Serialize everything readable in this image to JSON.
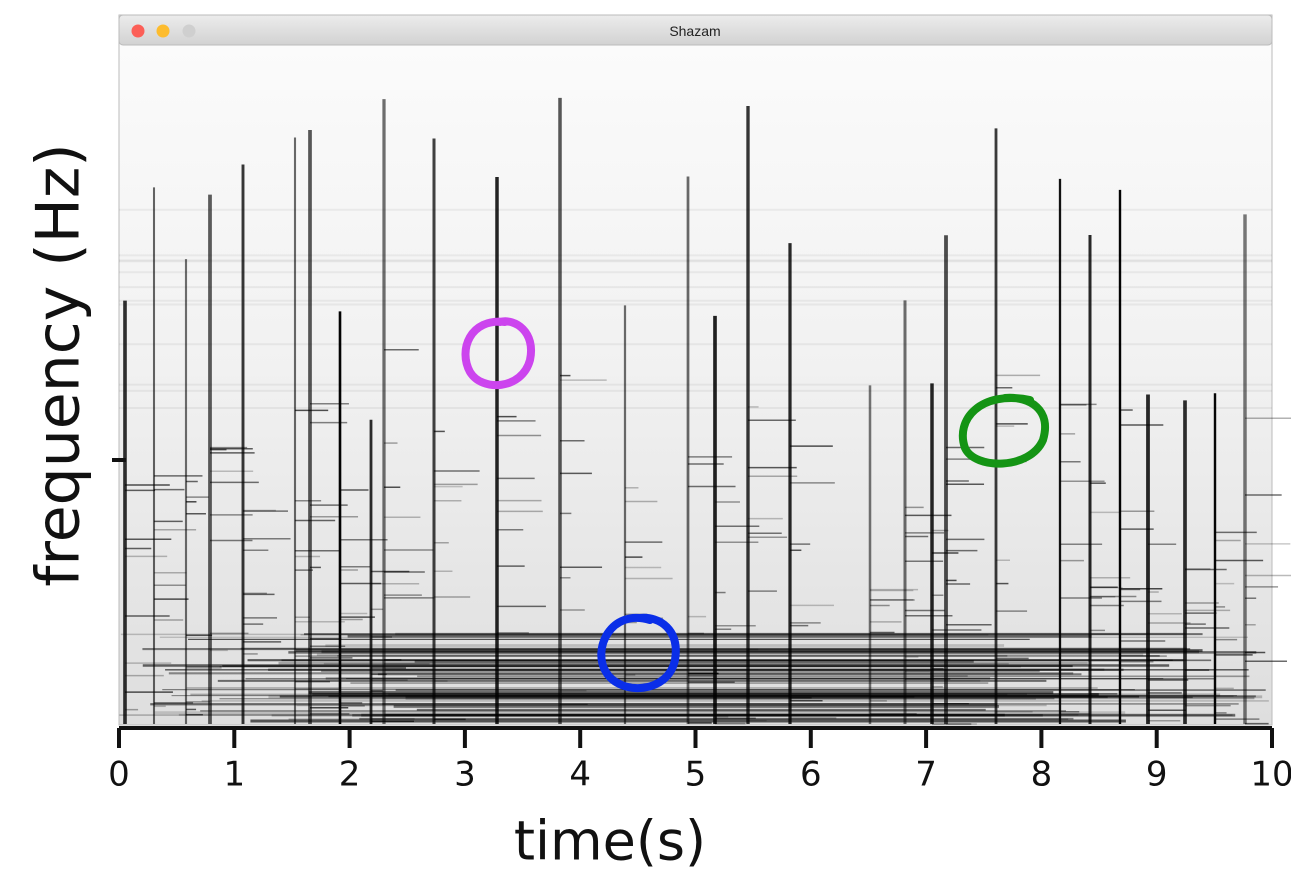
{
  "chart_data": {
    "type": "spectrogram",
    "window_title": "Shazam",
    "xlabel": "time(s)",
    "ylabel": "frequency (Hz)",
    "xlim": [
      0,
      10
    ],
    "xticks": [
      0,
      1,
      2,
      3,
      4,
      5,
      6,
      7,
      8,
      9,
      10
    ]
  }
}
